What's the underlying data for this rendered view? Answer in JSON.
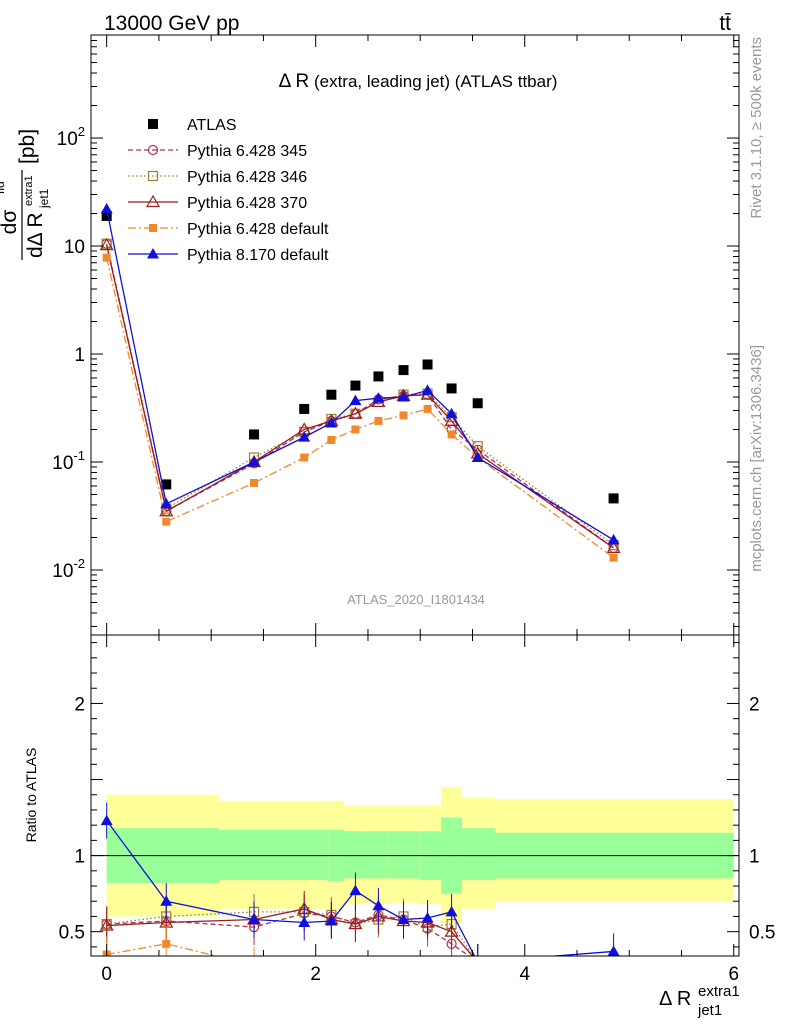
{
  "header": {
    "energy_label": "13000 GeV pp",
    "process_label": "tt̄"
  },
  "side_labels": {
    "rivet": "Rivet 3.1.10, ≥ 500k events",
    "mcplots": "mcplots.cern.ch [arXiv:1306.3436]"
  },
  "chart_data": [
    {
      "type": "line",
      "title_main": "Δ R",
      "title_rest": "(extra, leading jet) (ATLAS ttbar)",
      "ylabel": "dσ^fid / dΔ R_jet1^extra1 [pb]",
      "watermark": "ATLAS_2020_I1801434",
      "yscale": "log",
      "xlim": [
        -0.15,
        6.05
      ],
      "ylim": [
        0.0025,
        900
      ],
      "ytick_labels": [
        "10^-2",
        "10^-1",
        "1",
        "10",
        "10^2"
      ],
      "legend_position": "top-left",
      "series": [
        {
          "name": "ATLAS",
          "color": "#000000",
          "marker": "square",
          "x": [
            0.0,
            0.57,
            1.41,
            1.89,
            2.15,
            2.38,
            2.6,
            2.84,
            3.07,
            3.3,
            3.55,
            4.85
          ],
          "y": [
            19,
            0.062,
            0.18,
            0.31,
            0.42,
            0.51,
            0.62,
            0.71,
            0.8,
            0.48,
            0.35,
            0.046
          ]
        },
        {
          "name": "Pythia 6.428 345",
          "color": "#b0304f",
          "marker": "circle-open",
          "dash": "5,3",
          "x": [
            0.0,
            0.57,
            1.41,
            1.89,
            2.15,
            2.38,
            2.6,
            2.84,
            3.07,
            3.3,
            3.55,
            4.85
          ],
          "y": [
            10.5,
            0.035,
            0.097,
            0.19,
            0.24,
            0.28,
            0.38,
            0.41,
            0.42,
            0.2,
            0.13,
            0.016
          ]
        },
        {
          "name": "Pythia 6.428 346",
          "color": "#9b7d3c",
          "marker": "square-open",
          "dash": "1.5,2.5",
          "x": [
            0.0,
            0.57,
            1.41,
            1.89,
            2.15,
            2.38,
            2.6,
            2.84,
            3.07,
            3.3,
            3.55,
            4.85
          ],
          "y": [
            10.5,
            0.037,
            0.11,
            0.19,
            0.25,
            0.28,
            0.36,
            0.42,
            0.43,
            0.26,
            0.14,
            0.017
          ]
        },
        {
          "name": "Pythia 6.428 370",
          "color": "#9c1c1c",
          "marker": "triangle-open",
          "dash": "",
          "x": [
            0.0,
            0.57,
            1.41,
            1.89,
            2.15,
            2.38,
            2.6,
            2.84,
            3.07,
            3.3,
            3.55,
            4.85
          ],
          "y": [
            10.2,
            0.035,
            0.1,
            0.2,
            0.24,
            0.28,
            0.36,
            0.41,
            0.42,
            0.24,
            0.12,
            0.016
          ]
        },
        {
          "name": "Pythia 6.428 default",
          "color": "#f0892e",
          "marker": "square-filled",
          "dash": "8,3,2,3",
          "x": [
            0.0,
            0.57,
            1.41,
            1.89,
            2.15,
            2.38,
            2.6,
            2.84,
            3.07,
            3.3,
            3.55,
            4.85
          ],
          "y": [
            7.8,
            0.028,
            0.064,
            0.11,
            0.16,
            0.2,
            0.24,
            0.27,
            0.31,
            0.18,
            0.11,
            0.013
          ]
        },
        {
          "name": "Pythia 8.170 default",
          "color": "#1010dc",
          "marker": "triangle-filled",
          "dash": "",
          "x": [
            0.0,
            0.57,
            1.41,
            1.89,
            2.15,
            2.38,
            2.6,
            2.84,
            3.07,
            3.3,
            3.55,
            4.85
          ],
          "y": [
            22,
            0.041,
            0.1,
            0.17,
            0.23,
            0.37,
            0.39,
            0.4,
            0.46,
            0.28,
            0.11,
            0.019
          ]
        }
      ]
    },
    {
      "type": "line",
      "ylabel": "Ratio to ATLAS",
      "xlabel": "Δ R_jet1^extra1",
      "xlim": [
        -0.15,
        6.05
      ],
      "ylim": [
        0.34,
        2.45
      ],
      "xtick_labels": [
        "0",
        "2",
        "4",
        "6"
      ],
      "ytick_labels": [
        "0.5",
        "1",
        "2"
      ],
      "uncertainty_bands": {
        "edges": [
          0.0,
          1.08,
          2.12,
          2.27,
          2.5,
          2.7,
          3.0,
          3.2,
          3.4,
          3.72,
          6.0
        ],
        "inner": [
          [
            0.82,
            1.18
          ],
          [
            0.84,
            1.17
          ],
          [
            0.83,
            1.17
          ],
          [
            0.85,
            1.16
          ],
          [
            0.85,
            1.16
          ],
          [
            0.85,
            1.16
          ],
          [
            0.84,
            1.16
          ],
          [
            0.75,
            1.25
          ],
          [
            0.84,
            1.18
          ],
          [
            0.85,
            1.15
          ]
        ],
        "outer": [
          [
            0.6,
            1.4
          ],
          [
            0.65,
            1.36
          ],
          [
            0.64,
            1.36
          ],
          [
            0.68,
            1.33
          ],
          [
            0.68,
            1.33
          ],
          [
            0.69,
            1.33
          ],
          [
            0.68,
            1.33
          ],
          [
            0.55,
            1.45
          ],
          [
            0.65,
            1.38
          ],
          [
            0.7,
            1.37
          ]
        ],
        "inner_color": "#99ff99",
        "outer_color": "#ffff99"
      },
      "series": [
        {
          "name": "Pythia 6.428 345",
          "x": [
            0.0,
            0.57,
            1.41,
            1.89,
            2.15,
            2.38,
            2.6,
            2.84,
            3.07,
            3.3,
            3.55
          ],
          "y": [
            0.55,
            0.57,
            0.53,
            0.62,
            0.6,
            0.56,
            0.61,
            0.58,
            0.52,
            0.42,
            0.3
          ]
        },
        {
          "name": "Pythia 6.428 346",
          "x": [
            0.0,
            0.57,
            1.41,
            1.89,
            2.15,
            2.38,
            2.6,
            2.84,
            3.07,
            3.3,
            3.55
          ],
          "y": [
            0.55,
            0.6,
            0.63,
            0.63,
            0.61,
            0.55,
            0.58,
            0.6,
            0.53,
            0.55,
            0.3
          ]
        },
        {
          "name": "Pythia 6.428 370",
          "x": [
            0.0,
            0.57,
            1.41,
            1.89,
            2.15,
            2.38,
            2.6,
            2.84,
            3.07,
            3.3,
            3.55
          ],
          "y": [
            0.54,
            0.56,
            0.58,
            0.65,
            0.58,
            0.55,
            0.6,
            0.57,
            0.56,
            0.5,
            0.3
          ]
        },
        {
          "name": "Pythia 6.428 default",
          "x": [
            0.0,
            0.57,
            1.41
          ],
          "y": [
            0.35,
            0.42,
            0.28
          ]
        },
        {
          "name": "Pythia 8.170 default",
          "x": [
            0.0,
            0.57,
            1.41,
            1.89,
            2.15,
            2.38,
            2.6,
            2.84,
            3.07,
            3.3,
            3.55,
            4.85
          ],
          "y": [
            1.23,
            0.7,
            0.58,
            0.56,
            0.57,
            0.77,
            0.67,
            0.58,
            0.59,
            0.63,
            0.3,
            0.37
          ]
        }
      ]
    }
  ]
}
